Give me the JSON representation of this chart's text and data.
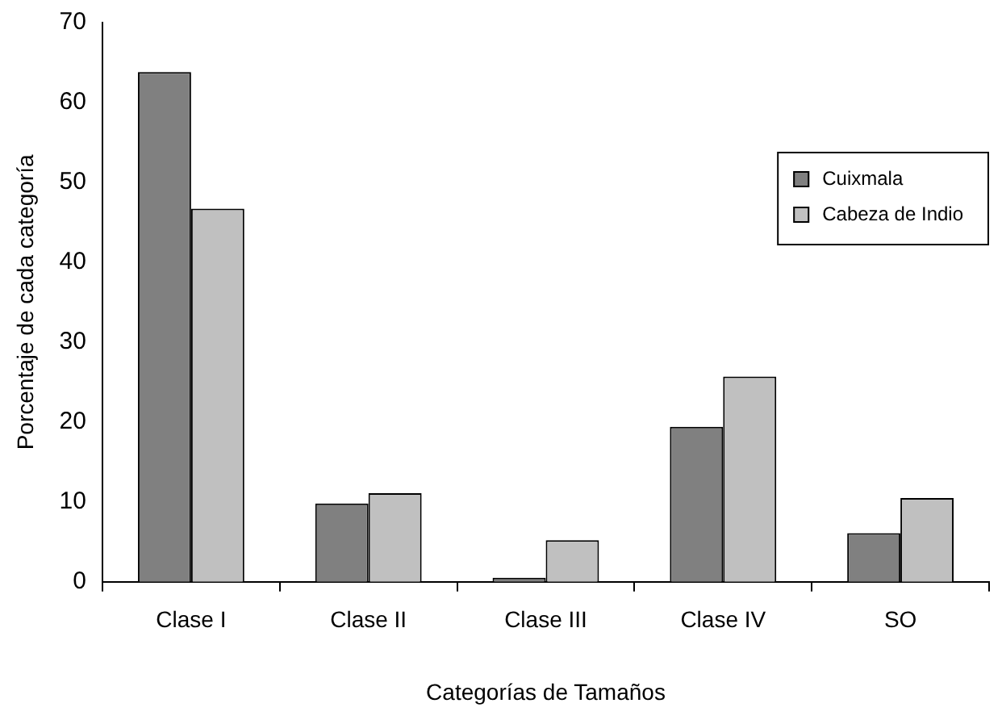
{
  "chart_data": {
    "type": "bar",
    "xlabel": "Categorías de Tamaños",
    "ylabel": "Porcentaje de cada categoría",
    "categories": [
      "Clase I",
      "Clase II",
      "Clase III",
      "Clase IV",
      "SO"
    ],
    "series": [
      {
        "name": "Cuixmala",
        "color": "#808080",
        "values": [
          63.8,
          9.8,
          0.5,
          19.4,
          6.1
        ]
      },
      {
        "name": "Cabeza de Indio",
        "color": "#c0c0c0",
        "values": [
          46.7,
          11.1,
          5.2,
          25.7,
          10.5
        ]
      }
    ],
    "ylim": [
      0,
      70
    ],
    "yticks": [
      0,
      10,
      20,
      30,
      40,
      50,
      60,
      70
    ],
    "grid": false,
    "legend": "top right"
  }
}
